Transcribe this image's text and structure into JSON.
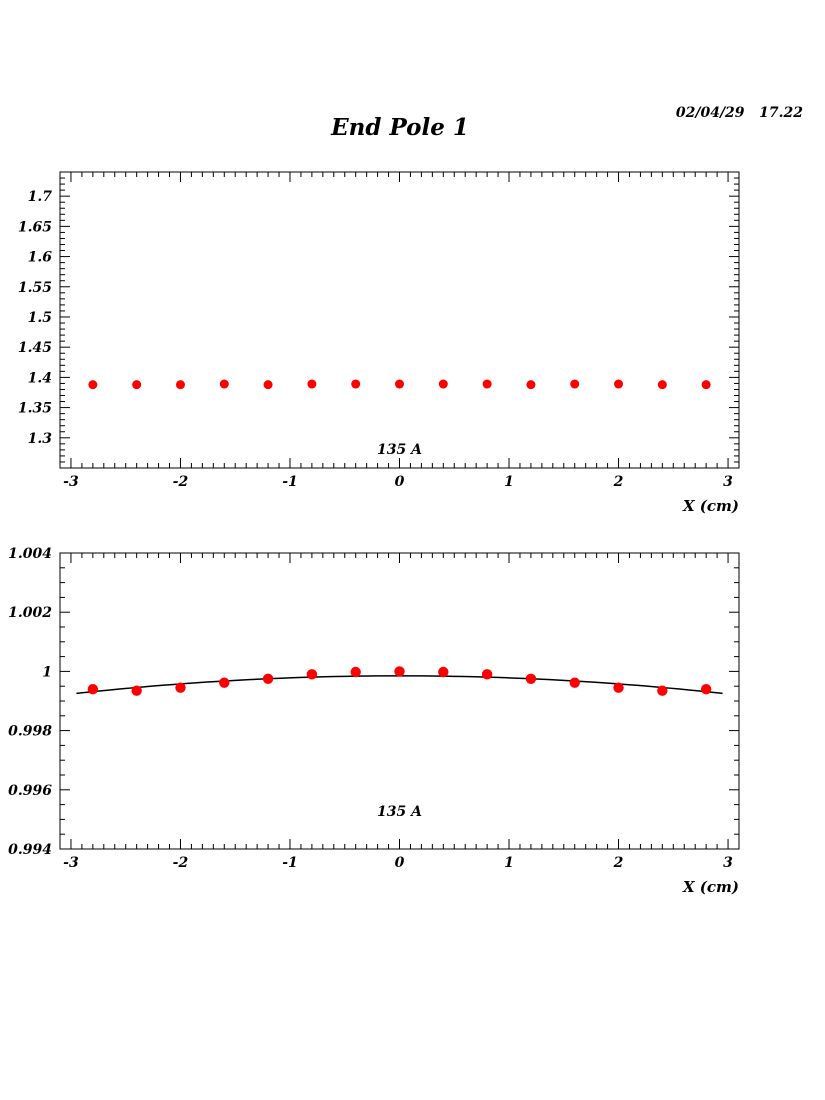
{
  "page": {
    "title": "End Pole 1",
    "timestamp": "02/04/29   17.22"
  },
  "colors": {
    "marker": "#ff0000",
    "axis": "#000000",
    "fit": "#000000"
  },
  "chart_data": [
    {
      "type": "scatter",
      "xlabel": "X (cm)",
      "annotation": "135 A",
      "xlim": [
        -3.1,
        3.1
      ],
      "ylim": [
        1.25,
        1.74
      ],
      "xticks": [
        -3,
        -2,
        -1,
        0,
        1,
        2,
        3
      ],
      "xticklabels": [
        "-3",
        "-2",
        "-1",
        "0",
        "1",
        "2",
        "3"
      ],
      "yticks": [
        1.3,
        1.35,
        1.4,
        1.45,
        1.5,
        1.55,
        1.6,
        1.65,
        1.7
      ],
      "yticklabels": [
        "1.3",
        "1.35",
        "1.4",
        "1.45",
        "1.5",
        "1.55",
        "1.6",
        "1.65",
        "1.7"
      ],
      "grid": false,
      "series": [
        {
          "x": [
            -2.8,
            -2.4,
            -2.0,
            -1.6,
            -1.2,
            -0.8,
            -0.4,
            0.0,
            0.4,
            0.8,
            1.2,
            1.6,
            2.0,
            2.4,
            2.8
          ],
          "y": [
            1.388,
            1.388,
            1.388,
            1.389,
            1.388,
            1.389,
            1.389,
            1.389,
            1.389,
            1.389,
            1.388,
            1.389,
            1.389,
            1.388,
            1.388
          ]
        }
      ]
    },
    {
      "type": "scatter",
      "xlabel": "X (cm)",
      "annotation": "135 A",
      "xlim": [
        -3.1,
        3.1
      ],
      "ylim": [
        0.994,
        1.004
      ],
      "xticks": [
        -3,
        -2,
        -1,
        0,
        1,
        2,
        3
      ],
      "xticklabels": [
        "-3",
        "-2",
        "-1",
        "0",
        "1",
        "2",
        "3"
      ],
      "yticks": [
        0.994,
        0.996,
        0.998,
        1.0,
        1.002,
        1.004
      ],
      "yticklabels": [
        "0.994",
        "0.996",
        "0.998",
        "1",
        "1.002",
        "1.004"
      ],
      "grid": false,
      "series": [
        {
          "x": [
            -2.8,
            -2.4,
            -2.0,
            -1.6,
            -1.2,
            -0.8,
            -0.4,
            0.0,
            0.4,
            0.8,
            1.2,
            1.6,
            2.0,
            2.4,
            2.8
          ],
          "y": [
            0.9994,
            0.99935,
            0.99945,
            0.99962,
            0.99975,
            0.9999,
            0.99998,
            1.0,
            0.99998,
            0.9999,
            0.99975,
            0.99962,
            0.99945,
            0.99935,
            0.9994
          ]
        }
      ],
      "fit": {
        "type": "quadratic",
        "coefficients": [
          0.99985,
          0.0,
          -6.83e-05
        ],
        "xrange": [
          -2.95,
          2.95
        ]
      }
    }
  ]
}
